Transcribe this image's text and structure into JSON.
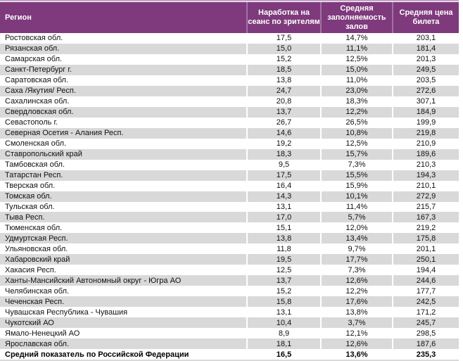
{
  "table": {
    "columns": [
      {
        "label": "Регион"
      },
      {
        "label": "Наработка на сеанс по зрителям"
      },
      {
        "label": "Средняя заполняемость залов"
      },
      {
        "label": "Средняя цена билета"
      }
    ],
    "rows": [
      {
        "region": "Ростовская обл.",
        "per_session": "17,5",
        "occupancy": "14,7%",
        "price": "203,1"
      },
      {
        "region": "Рязанская обл.",
        "per_session": "15,0",
        "occupancy": "11,1%",
        "price": "181,4"
      },
      {
        "region": "Самарская обл.",
        "per_session": "15,2",
        "occupancy": "12,5%",
        "price": "201,3"
      },
      {
        "region": "Санкт-Петербург г.",
        "per_session": "18,5",
        "occupancy": "15,0%",
        "price": "249,5"
      },
      {
        "region": "Саратовская обл.",
        "per_session": "13,8",
        "occupancy": "11,0%",
        "price": "203,5"
      },
      {
        "region": "Саха /Якутия/ Респ.",
        "per_session": "24,7",
        "occupancy": "23,0%",
        "price": "272,6"
      },
      {
        "region": "Сахалинская обл.",
        "per_session": "20,8",
        "occupancy": "18,3%",
        "price": "307,1"
      },
      {
        "region": "Свердловская обл.",
        "per_session": "13,7",
        "occupancy": "12,2%",
        "price": "184,9"
      },
      {
        "region": "Севастополь г.",
        "per_session": "26,7",
        "occupancy": "26,5%",
        "price": "199,9"
      },
      {
        "region": "Северная Осетия - Алания Респ.",
        "per_session": "14,6",
        "occupancy": "10,8%",
        "price": "219,8"
      },
      {
        "region": "Смоленская обл.",
        "per_session": "19,2",
        "occupancy": "12,5%",
        "price": "210,9"
      },
      {
        "region": "Ставропольский край",
        "per_session": "18,3",
        "occupancy": "15,7%",
        "price": "189,6"
      },
      {
        "region": "Тамбовская обл.",
        "per_session": "9,5",
        "occupancy": "7,3%",
        "price": "210,3"
      },
      {
        "region": "Татарстан Респ.",
        "per_session": "17,5",
        "occupancy": "15,5%",
        "price": "194,3"
      },
      {
        "region": "Тверская обл.",
        "per_session": "16,4",
        "occupancy": "15,9%",
        "price": "210,1"
      },
      {
        "region": "Томская обл.",
        "per_session": "14,3",
        "occupancy": "10,1%",
        "price": "272,9"
      },
      {
        "region": "Тульская обл.",
        "per_session": "13,1",
        "occupancy": "11,4%",
        "price": "215,7"
      },
      {
        "region": "Тыва Респ.",
        "per_session": "17,0",
        "occupancy": "5,7%",
        "price": "167,3"
      },
      {
        "region": "Тюменская обл.",
        "per_session": "15,1",
        "occupancy": "12,0%",
        "price": "219,2"
      },
      {
        "region": "Удмуртская Респ.",
        "per_session": "13,8",
        "occupancy": "13,4%",
        "price": "175,8"
      },
      {
        "region": "Ульяновская обл.",
        "per_session": "11,8",
        "occupancy": "9,7%",
        "price": "201,1"
      },
      {
        "region": "Хабаровский край",
        "per_session": "19,5",
        "occupancy": "17,7%",
        "price": "250,1"
      },
      {
        "region": "Хакасия Респ.",
        "per_session": "12,5",
        "occupancy": "7,3%",
        "price": "194,4"
      },
      {
        "region": "Ханты-Мансийский Автономный округ - Югра АО",
        "per_session": "13,7",
        "occupancy": "12,6%",
        "price": "244,6"
      },
      {
        "region": "Челябинская обл.",
        "per_session": "15,2",
        "occupancy": "12,2%",
        "price": "177,7"
      },
      {
        "region": "Чеченская Респ.",
        "per_session": "15,8",
        "occupancy": "17,6%",
        "price": "242,5"
      },
      {
        "region": "Чувашская Республика - Чувашия",
        "per_session": "13,1",
        "occupancy": "13,8%",
        "price": "171,2"
      },
      {
        "region": "Чукотский АО",
        "per_session": "10,4",
        "occupancy": "3,7%",
        "price": "245,7"
      },
      {
        "region": "Ямало-Ненецкий АО",
        "per_session": "8,9",
        "occupancy": "12,1%",
        "price": "298,5"
      },
      {
        "region": "Ярославская обл.",
        "per_session": "18,1",
        "occupancy": "12,6%",
        "price": "187,6"
      }
    ],
    "total_row": {
      "region": "Средний показатель по Российской Федерации",
      "per_session": "16,5",
      "occupancy": "13,6%",
      "price": "235,3"
    }
  },
  "colors": {
    "header_bg": "#7e3a7c",
    "header_separator": "#a273a2",
    "header_text": "#ffffff",
    "top_strip": "#c6a4c9",
    "stripe": "#d9d9d9",
    "text": "#111111"
  }
}
